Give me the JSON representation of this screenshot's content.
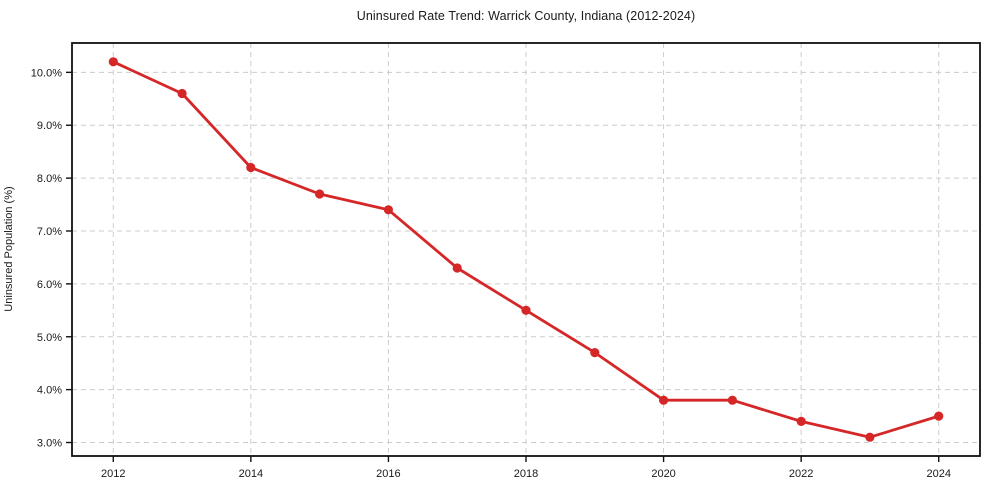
{
  "figure": {
    "title": "Uninsured Rate Trend: Warrick County, Indiana (2012-2024)"
  },
  "chart_data": {
    "type": "line",
    "title": "Uninsured Rate Trend: Warrick County, Indiana (2012-2024)",
    "xlabel": "",
    "ylabel": "Uninsured Population (%)",
    "x": [
      2012,
      2013,
      2014,
      2015,
      2016,
      2017,
      2018,
      2019,
      2020,
      2021,
      2022,
      2023,
      2024
    ],
    "values": [
      10.2,
      9.6,
      8.2,
      7.7,
      7.4,
      6.3,
      5.5,
      4.7,
      3.8,
      3.8,
      3.4,
      3.1,
      3.5
    ],
    "x_ticks": [
      2012,
      2014,
      2016,
      2018,
      2020,
      2022,
      2024
    ],
    "x_tick_labels": [
      "2012",
      "2014",
      "2016",
      "2018",
      "2020",
      "2022",
      "2024"
    ],
    "y_ticks": [
      3.0,
      4.0,
      5.0,
      6.0,
      7.0,
      8.0,
      9.0,
      10.0
    ],
    "y_tick_labels": [
      "3.0%",
      "4.0%",
      "5.0%",
      "6.0%",
      "7.0%",
      "8.0%",
      "9.0%",
      "10.0%"
    ],
    "xlim": [
      2011.4,
      2024.6
    ],
    "ylim": [
      2.745,
      10.555
    ],
    "grid": true,
    "grid_style": "dashed",
    "legend": false,
    "line_color": "#d62728",
    "marker": "circle",
    "marker_color": "#d62728",
    "grid_color": "#cccccc",
    "spine_color": "#111111",
    "text_color": "#1a1a1a",
    "background_color": "#ffffff"
  }
}
